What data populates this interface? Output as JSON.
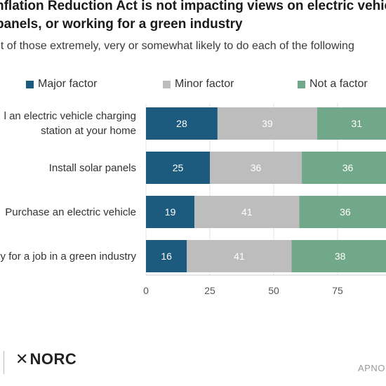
{
  "header": {
    "title_line1": "nflation Reduction Act is not impacting views on electric vehic",
    "title_line2": "panels, or working for a green industry",
    "subtitle": "nt of those extremely, very or somewhat likely to do each of the following"
  },
  "legend": {
    "items": [
      {
        "label": "Major factor",
        "color": "#1d5b7e"
      },
      {
        "label": "Minor factor",
        "color": "#bdbdbd"
      },
      {
        "label": "Not a factor",
        "color": "#71a889"
      }
    ]
  },
  "chart_data": {
    "type": "bar",
    "orientation": "horizontal",
    "stacked": true,
    "categories": [
      "l an electric vehicle charging station at your home",
      "Install solar panels",
      "Purchase an electric vehicle",
      "y for a job in a green industry"
    ],
    "category_lines": [
      [
        "l an electric vehicle charging",
        "station at your home"
      ],
      [
        "Install solar panels"
      ],
      [
        "Purchase an electric vehicle"
      ],
      [
        "y for a job in a green industry"
      ]
    ],
    "series": [
      {
        "name": "Major factor",
        "color": "#1d5b7e",
        "values": [
          28,
          25,
          19,
          16
        ]
      },
      {
        "name": "Minor factor",
        "color": "#bdbdbd",
        "values": [
          39,
          36,
          41,
          41
        ]
      },
      {
        "name": "Not a factor",
        "color": "#71a889",
        "values": [
          31,
          36,
          36,
          38
        ]
      }
    ],
    "xlim": [
      0,
      100
    ],
    "xticks": [
      0,
      25,
      50,
      75
    ],
    "grid": true,
    "legend_position": "top"
  },
  "footer": {
    "logo_mark": "✕",
    "logo_text": "NORC",
    "source": "APNO"
  }
}
